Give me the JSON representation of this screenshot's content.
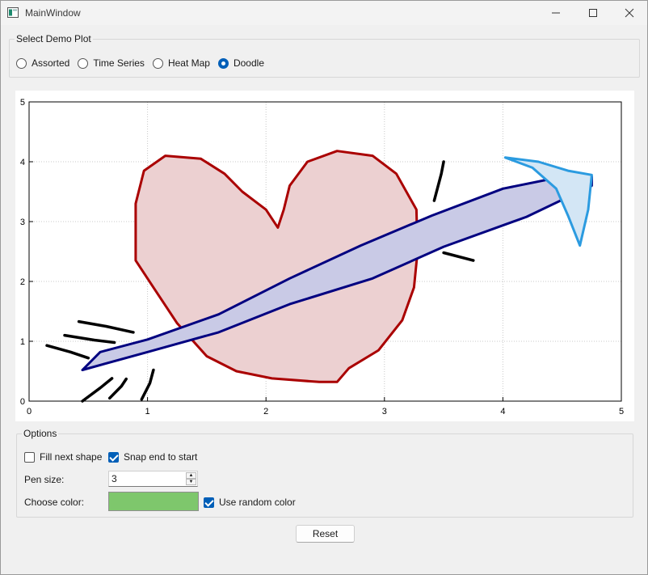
{
  "window": {
    "title": "MainWindow"
  },
  "demo_group": {
    "legend": "Select Demo Plot",
    "options": [
      {
        "label": "Assorted",
        "checked": false
      },
      {
        "label": "Time Series",
        "checked": false
      },
      {
        "label": "Heat Map",
        "checked": false
      },
      {
        "label": "Doodle",
        "checked": true
      }
    ]
  },
  "chart_data": {
    "type": "line",
    "xlim": [
      0,
      5
    ],
    "ylim": [
      0,
      5
    ],
    "grid": true,
    "x_ticks": [
      "0",
      "1",
      "2",
      "3",
      "4",
      "5"
    ],
    "y_ticks": [
      "0",
      "1",
      "2",
      "3",
      "4",
      "5"
    ],
    "shapes": [
      {
        "name": "heart",
        "fill": "#ecd0d1",
        "stroke": "#aa0000",
        "points": [
          [
            2.1,
            2.9
          ],
          [
            2.0,
            3.2
          ],
          [
            1.8,
            3.5
          ],
          [
            1.65,
            3.8
          ],
          [
            1.45,
            4.05
          ],
          [
            1.15,
            4.1
          ],
          [
            0.97,
            3.85
          ],
          [
            0.9,
            3.3
          ],
          [
            0.9,
            2.35
          ],
          [
            1.05,
            1.9
          ],
          [
            1.25,
            1.3
          ],
          [
            1.5,
            0.75
          ],
          [
            1.75,
            0.5
          ],
          [
            2.05,
            0.38
          ],
          [
            2.45,
            0.32
          ],
          [
            2.6,
            0.32
          ],
          [
            2.7,
            0.55
          ],
          [
            2.95,
            0.85
          ],
          [
            3.15,
            1.35
          ],
          [
            3.25,
            1.9
          ],
          [
            3.28,
            2.5
          ],
          [
            3.27,
            3.2
          ],
          [
            3.1,
            3.8
          ],
          [
            2.9,
            4.1
          ],
          [
            2.6,
            4.18
          ],
          [
            2.35,
            4.0
          ],
          [
            2.2,
            3.6
          ],
          [
            2.15,
            3.2
          ],
          [
            2.1,
            2.9
          ]
        ]
      },
      {
        "name": "arrow-shaft",
        "fill": "#c9cae6",
        "stroke": "#000080",
        "points": [
          [
            0.45,
            0.52
          ],
          [
            1.0,
            0.82
          ],
          [
            1.6,
            1.15
          ],
          [
            2.2,
            1.62
          ],
          [
            2.9,
            2.05
          ],
          [
            3.5,
            2.58
          ],
          [
            4.2,
            3.08
          ],
          [
            4.75,
            3.6
          ],
          [
            4.75,
            3.75
          ],
          [
            4.5,
            3.75
          ],
          [
            4.0,
            3.55
          ],
          [
            3.4,
            3.1
          ],
          [
            2.8,
            2.6
          ],
          [
            2.2,
            2.05
          ],
          [
            1.6,
            1.45
          ],
          [
            1.0,
            1.03
          ],
          [
            0.6,
            0.82
          ],
          [
            0.45,
            0.52
          ]
        ]
      },
      {
        "name": "arrow-head",
        "fill": "#d3e6f5",
        "stroke": "#2b9be0",
        "points": [
          [
            4.02,
            4.07
          ],
          [
            4.25,
            3.9
          ],
          [
            4.45,
            3.55
          ],
          [
            4.55,
            3.1
          ],
          [
            4.65,
            2.6
          ],
          [
            4.72,
            3.2
          ],
          [
            4.75,
            3.78
          ],
          [
            4.55,
            3.85
          ],
          [
            4.3,
            4.0
          ],
          [
            4.02,
            4.07
          ]
        ]
      }
    ],
    "strokes": [
      {
        "name": "feather-1",
        "color": "#000000",
        "points": [
          [
            0.15,
            0.93
          ],
          [
            0.35,
            0.82
          ],
          [
            0.5,
            0.72
          ]
        ]
      },
      {
        "name": "feather-2",
        "color": "#000000",
        "points": [
          [
            0.3,
            1.1
          ],
          [
            0.55,
            1.02
          ],
          [
            0.72,
            0.98
          ]
        ]
      },
      {
        "name": "feather-3",
        "color": "#000000",
        "points": [
          [
            0.42,
            1.33
          ],
          [
            0.65,
            1.25
          ],
          [
            0.88,
            1.15
          ]
        ]
      },
      {
        "name": "feather-4",
        "color": "#000000",
        "points": [
          [
            0.45,
            0.0
          ],
          [
            0.6,
            0.22
          ],
          [
            0.7,
            0.38
          ]
        ]
      },
      {
        "name": "feather-5",
        "color": "#000000",
        "points": [
          [
            0.68,
            0.05
          ],
          [
            0.78,
            0.25
          ],
          [
            0.82,
            0.37
          ]
        ]
      },
      {
        "name": "feather-6",
        "color": "#000000",
        "points": [
          [
            0.95,
            0.03
          ],
          [
            1.02,
            0.3
          ],
          [
            1.05,
            0.52
          ]
        ]
      },
      {
        "name": "spark-1",
        "color": "#000000",
        "points": [
          [
            3.42,
            3.35
          ],
          [
            3.48,
            3.8
          ],
          [
            3.5,
            4.0
          ]
        ]
      },
      {
        "name": "spark-2",
        "color": "#000000",
        "points": [
          [
            3.5,
            2.48
          ],
          [
            3.75,
            2.35
          ]
        ]
      }
    ]
  },
  "options_group": {
    "legend": "Options",
    "fill_next_shape": {
      "label": "Fill next shape",
      "checked": false
    },
    "snap_end": {
      "label": "Snap end to start",
      "checked": true
    },
    "pen_size": {
      "label": "Pen size:",
      "value": "3"
    },
    "color": {
      "label": "Choose color:",
      "value": "#7ec76c"
    },
    "random_color": {
      "label": "Use random color",
      "checked": true
    }
  },
  "reset_label": "Reset"
}
